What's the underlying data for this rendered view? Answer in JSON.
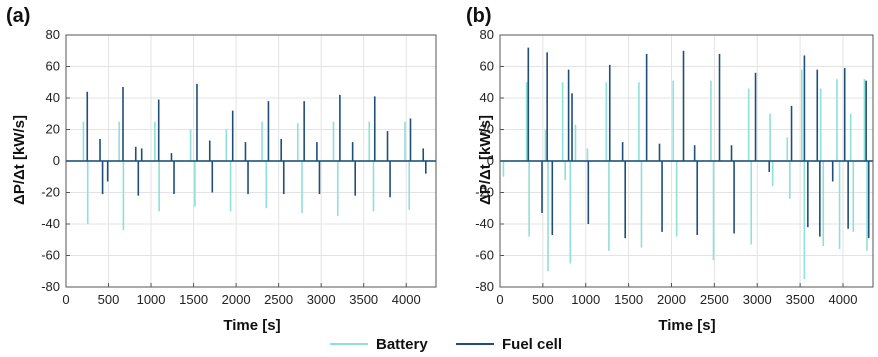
{
  "colors": {
    "battery": "#8fe0d6",
    "fuel_cell": "#1f4e79",
    "grid": "#e3e3e3",
    "axis": "#555555"
  },
  "legend": {
    "battery": "Battery",
    "fuel_cell": "Fuel cell"
  },
  "chart_data": [
    {
      "type": "line",
      "panel_label": "(a)",
      "xlabel": "Time [s]",
      "ylabel": "ΔP/Δt [kW/s]",
      "xlim": [
        0,
        4350
      ],
      "ylim": [
        -80,
        80
      ],
      "xticks": [
        0,
        500,
        1000,
        1500,
        2000,
        2500,
        3000,
        3500,
        4000
      ],
      "yticks": [
        -80,
        -60,
        -40,
        -20,
        0,
        20,
        40,
        60,
        80
      ],
      "grid": true,
      "series": [
        {
          "name": "Battery",
          "spikes": [
            {
              "x": 205,
              "y": 25
            },
            {
              "x": 255,
              "y": -40
            },
            {
              "x": 625,
              "y": 25
            },
            {
              "x": 675,
              "y": -44
            },
            {
              "x": 1045,
              "y": 25
            },
            {
              "x": 1095,
              "y": -32
            },
            {
              "x": 1465,
              "y": 20
            },
            {
              "x": 1515,
              "y": -29
            },
            {
              "x": 1885,
              "y": 20
            },
            {
              "x": 1935,
              "y": -32
            },
            {
              "x": 2305,
              "y": 25
            },
            {
              "x": 2355,
              "y": -30
            },
            {
              "x": 2725,
              "y": 24
            },
            {
              "x": 2775,
              "y": -33
            },
            {
              "x": 3145,
              "y": 25
            },
            {
              "x": 3195,
              "y": -35
            },
            {
              "x": 3565,
              "y": 25
            },
            {
              "x": 3615,
              "y": -32
            },
            {
              "x": 3985,
              "y": 25
            },
            {
              "x": 4035,
              "y": -31
            }
          ]
        },
        {
          "name": "Fuel cell",
          "spikes": [
            {
              "x": 250,
              "y": 44
            },
            {
              "x": 400,
              "y": 14
            },
            {
              "x": 430,
              "y": -21
            },
            {
              "x": 490,
              "y": -13
            },
            {
              "x": 670,
              "y": 47
            },
            {
              "x": 820,
              "y": 9
            },
            {
              "x": 850,
              "y": -22
            },
            {
              "x": 890,
              "y": 8
            },
            {
              "x": 1090,
              "y": 39
            },
            {
              "x": 1240,
              "y": 5
            },
            {
              "x": 1270,
              "y": -21
            },
            {
              "x": 1540,
              "y": 49
            },
            {
              "x": 1690,
              "y": 13
            },
            {
              "x": 1720,
              "y": -20
            },
            {
              "x": 1960,
              "y": 32
            },
            {
              "x": 2110,
              "y": 12
            },
            {
              "x": 2140,
              "y": -21
            },
            {
              "x": 2380,
              "y": 38
            },
            {
              "x": 2530,
              "y": 14
            },
            {
              "x": 2560,
              "y": -21
            },
            {
              "x": 2800,
              "y": 38
            },
            {
              "x": 2950,
              "y": 12
            },
            {
              "x": 2980,
              "y": -21
            },
            {
              "x": 3220,
              "y": 42
            },
            {
              "x": 3370,
              "y": 12
            },
            {
              "x": 3400,
              "y": -22
            },
            {
              "x": 3630,
              "y": 41
            },
            {
              "x": 3780,
              "y": 19
            },
            {
              "x": 3810,
              "y": -23
            },
            {
              "x": 4050,
              "y": 27
            },
            {
              "x": 4200,
              "y": 8
            },
            {
              "x": 4230,
              "y": -8
            }
          ]
        }
      ]
    },
    {
      "type": "line",
      "panel_label": "(b)",
      "xlabel": "Time [s]",
      "ylabel": "ΔP/Δt [kW/s]",
      "xlim": [
        0,
        4350
      ],
      "ylim": [
        -80,
        80
      ],
      "xticks": [
        0,
        500,
        1000,
        1500,
        2000,
        2500,
        3000,
        3500,
        4000
      ],
      "yticks": [
        -80,
        -60,
        -40,
        -20,
        0,
        20,
        40,
        60,
        80
      ],
      "grid": true,
      "series": [
        {
          "name": "Battery",
          "spikes": [
            {
              "x": 40,
              "y": -10
            },
            {
              "x": 310,
              "y": 50
            },
            {
              "x": 340,
              "y": -48
            },
            {
              "x": 530,
              "y": 20
            },
            {
              "x": 560,
              "y": -70
            },
            {
              "x": 730,
              "y": 50
            },
            {
              "x": 760,
              "y": -12
            },
            {
              "x": 820,
              "y": -65
            },
            {
              "x": 880,
              "y": 23
            },
            {
              "x": 1020,
              "y": 8
            },
            {
              "x": 1240,
              "y": 50
            },
            {
              "x": 1270,
              "y": -57
            },
            {
              "x": 1620,
              "y": 50
            },
            {
              "x": 1650,
              "y": -55
            },
            {
              "x": 2020,
              "y": 51
            },
            {
              "x": 2060,
              "y": -48
            },
            {
              "x": 2460,
              "y": 51
            },
            {
              "x": 2490,
              "y": -63
            },
            {
              "x": 2900,
              "y": 46
            },
            {
              "x": 2930,
              "y": -53
            },
            {
              "x": 3150,
              "y": 30
            },
            {
              "x": 3180,
              "y": -16
            },
            {
              "x": 3350,
              "y": 15
            },
            {
              "x": 3380,
              "y": -24
            },
            {
              "x": 3520,
              "y": 58
            },
            {
              "x": 3550,
              "y": -75
            },
            {
              "x": 3740,
              "y": 46
            },
            {
              "x": 3770,
              "y": -54
            },
            {
              "x": 3930,
              "y": 52
            },
            {
              "x": 3960,
              "y": -56
            },
            {
              "x": 4090,
              "y": 30
            },
            {
              "x": 4120,
              "y": -45
            },
            {
              "x": 4250,
              "y": 52
            },
            {
              "x": 4280,
              "y": -57
            }
          ]
        },
        {
          "name": "Fuel cell",
          "spikes": [
            {
              "x": 330,
              "y": 72
            },
            {
              "x": 490,
              "y": -33
            },
            {
              "x": 550,
              "y": 69
            },
            {
              "x": 610,
              "y": -47
            },
            {
              "x": 800,
              "y": 58
            },
            {
              "x": 840,
              "y": 43
            },
            {
              "x": 1030,
              "y": -40
            },
            {
              "x": 1280,
              "y": 61
            },
            {
              "x": 1430,
              "y": 12
            },
            {
              "x": 1460,
              "y": -49
            },
            {
              "x": 1710,
              "y": 68
            },
            {
              "x": 1860,
              "y": 11
            },
            {
              "x": 1890,
              "y": -45
            },
            {
              "x": 2140,
              "y": 70
            },
            {
              "x": 2270,
              "y": 10
            },
            {
              "x": 2300,
              "y": -47
            },
            {
              "x": 2560,
              "y": 68
            },
            {
              "x": 2700,
              "y": 10
            },
            {
              "x": 2730,
              "y": -46
            },
            {
              "x": 2980,
              "y": 56
            },
            {
              "x": 3140,
              "y": -7
            },
            {
              "x": 3400,
              "y": 35
            },
            {
              "x": 3550,
              "y": 67
            },
            {
              "x": 3590,
              "y": -42
            },
            {
              "x": 3700,
              "y": 58
            },
            {
              "x": 3730,
              "y": -48
            },
            {
              "x": 3880,
              "y": -13
            },
            {
              "x": 4020,
              "y": 59
            },
            {
              "x": 4060,
              "y": -43
            },
            {
              "x": 4270,
              "y": 51
            },
            {
              "x": 4300,
              "y": -49
            }
          ]
        }
      ]
    }
  ]
}
